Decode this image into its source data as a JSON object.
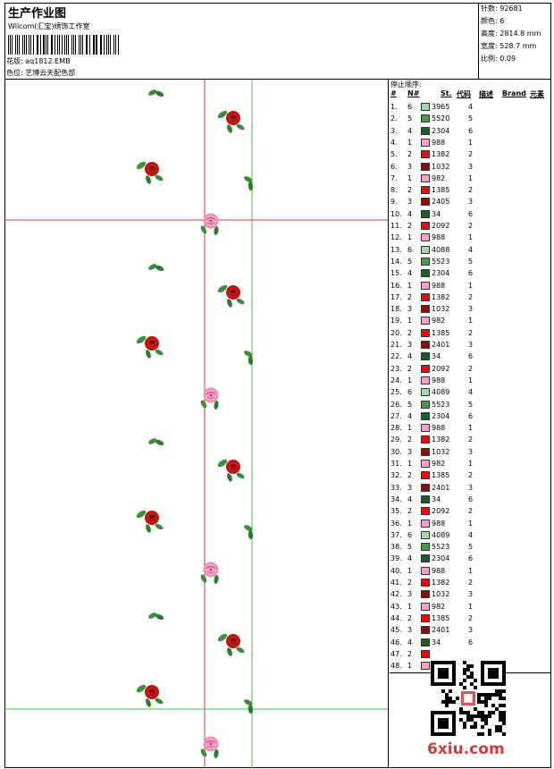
{
  "header": {
    "title": "生产作业图",
    "company": "Wilcom(汇宝)绣饰工作室",
    "file_label": "花版:",
    "file_name": "aq1812.EMB",
    "colorway_label": "色位:",
    "colorway_name": "艺博云天配色部"
  },
  "stats": [
    {
      "label": "针数:",
      "value": "92681"
    },
    {
      "label": "颜色:",
      "value": "6"
    },
    {
      "label": "高度:",
      "value": "2814.8 mm"
    },
    {
      "label": "宽度:",
      "value": "528.7 mm"
    },
    {
      "label": "比例:",
      "value": "0.09"
    }
  ],
  "sequence": {
    "title": "停止顺序:",
    "headers": [
      "#",
      "N#",
      "St.",
      "代码",
      "描述",
      "Brand",
      "元素"
    ],
    "rows": [
      {
        "n": "1.",
        "nn": "6",
        "code": "3965",
        "el": "4",
        "color": "#a8d8a8"
      },
      {
        "n": "2.",
        "nn": "5",
        "code": "5520",
        "el": "5",
        "color": "#4a9a4a"
      },
      {
        "n": "3.",
        "nn": "4",
        "code": "2304",
        "el": "6",
        "color": "#1e5a2a"
      },
      {
        "n": "4.",
        "nn": "1",
        "code": "988",
        "el": "1",
        "color": "#f5a0c8"
      },
      {
        "n": "5.",
        "nn": "2",
        "code": "1382",
        "el": "2",
        "color": "#e01010"
      },
      {
        "n": "6.",
        "nn": "3",
        "code": "1032",
        "el": "3",
        "color": "#8a1010"
      },
      {
        "n": "7.",
        "nn": "1",
        "code": "982",
        "el": "1",
        "color": "#f5a0c8"
      },
      {
        "n": "8.",
        "nn": "2",
        "code": "1385",
        "el": "2",
        "color": "#e01010"
      },
      {
        "n": "9.",
        "nn": "3",
        "code": "2405",
        "el": "3",
        "color": "#8a1010"
      },
      {
        "n": "10.",
        "nn": "4",
        "code": "34",
        "el": "6",
        "color": "#1e5a2a"
      },
      {
        "n": "11.",
        "nn": "2",
        "code": "2092",
        "el": "2",
        "color": "#e01010"
      },
      {
        "n": "12.",
        "nn": "1",
        "code": "988",
        "el": "1",
        "color": "#f5a0c8"
      },
      {
        "n": "13.",
        "nn": "6",
        "code": "4088",
        "el": "4",
        "color": "#a8d8a8"
      },
      {
        "n": "14.",
        "nn": "5",
        "code": "5523",
        "el": "5",
        "color": "#4a9a4a"
      },
      {
        "n": "15.",
        "nn": "4",
        "code": "2304",
        "el": "6",
        "color": "#1e5a2a"
      },
      {
        "n": "16.",
        "nn": "1",
        "code": "988",
        "el": "1",
        "color": "#f5a0c8"
      },
      {
        "n": "17.",
        "nn": "2",
        "code": "1382",
        "el": "2",
        "color": "#e01010"
      },
      {
        "n": "18.",
        "nn": "3",
        "code": "1032",
        "el": "3",
        "color": "#8a1010"
      },
      {
        "n": "19.",
        "nn": "1",
        "code": "982",
        "el": "1",
        "color": "#f5a0c8"
      },
      {
        "n": "20.",
        "nn": "2",
        "code": "1385",
        "el": "2",
        "color": "#e01010"
      },
      {
        "n": "21.",
        "nn": "3",
        "code": "2401",
        "el": "3",
        "color": "#8a1010"
      },
      {
        "n": "22.",
        "nn": "4",
        "code": "34",
        "el": "6",
        "color": "#1e5a2a"
      },
      {
        "n": "23.",
        "nn": "2",
        "code": "2092",
        "el": "2",
        "color": "#e01010"
      },
      {
        "n": "24.",
        "nn": "1",
        "code": "988",
        "el": "1",
        "color": "#f5a0c8"
      },
      {
        "n": "25.",
        "nn": "6",
        "code": "4089",
        "el": "4",
        "color": "#a8d8a8"
      },
      {
        "n": "26.",
        "nn": "5",
        "code": "5523",
        "el": "5",
        "color": "#4a9a4a"
      },
      {
        "n": "27.",
        "nn": "4",
        "code": "2304",
        "el": "6",
        "color": "#1e5a2a"
      },
      {
        "n": "28.",
        "nn": "1",
        "code": "988",
        "el": "1",
        "color": "#f5a0c8"
      },
      {
        "n": "29.",
        "nn": "2",
        "code": "1382",
        "el": "2",
        "color": "#e01010"
      },
      {
        "n": "30.",
        "nn": "3",
        "code": "1032",
        "el": "3",
        "color": "#8a1010"
      },
      {
        "n": "31.",
        "nn": "1",
        "code": "982",
        "el": "1",
        "color": "#f5a0c8"
      },
      {
        "n": "32.",
        "nn": "2",
        "code": "1385",
        "el": "2",
        "color": "#e01010"
      },
      {
        "n": "33.",
        "nn": "3",
        "code": "2401",
        "el": "3",
        "color": "#8a1010"
      },
      {
        "n": "34.",
        "nn": "4",
        "code": "34",
        "el": "6",
        "color": "#1e5a2a"
      },
      {
        "n": "35.",
        "nn": "2",
        "code": "2092",
        "el": "2",
        "color": "#e01010"
      },
      {
        "n": "36.",
        "nn": "1",
        "code": "988",
        "el": "1",
        "color": "#f5a0c8"
      },
      {
        "n": "37.",
        "nn": "6",
        "code": "4089",
        "el": "4",
        "color": "#a8d8a8"
      },
      {
        "n": "38.",
        "nn": "5",
        "code": "5523",
        "el": "5",
        "color": "#4a9a4a"
      },
      {
        "n": "39.",
        "nn": "4",
        "code": "2304",
        "el": "6",
        "color": "#1e5a2a"
      },
      {
        "n": "40.",
        "nn": "1",
        "code": "988",
        "el": "1",
        "color": "#f5a0c8"
      },
      {
        "n": "41.",
        "nn": "2",
        "code": "1382",
        "el": "2",
        "color": "#e01010"
      },
      {
        "n": "42.",
        "nn": "3",
        "code": "1032",
        "el": "3",
        "color": "#8a1010"
      },
      {
        "n": "43.",
        "nn": "1",
        "code": "982",
        "el": "1",
        "color": "#f5a0c8"
      },
      {
        "n": "44.",
        "nn": "2",
        "code": "1385",
        "el": "2",
        "color": "#e01010"
      },
      {
        "n": "45.",
        "nn": "3",
        "code": "2401",
        "el": "3",
        "color": "#8a1010"
      },
      {
        "n": "46.",
        "nn": "4",
        "code": "34",
        "el": "6",
        "color": "#1e5a2a"
      },
      {
        "n": "47.",
        "nn": "2",
        "code": "",
        "el": "",
        "color": "#e01010"
      },
      {
        "n": "48.",
        "nn": "1",
        "code": "",
        "el": "",
        "color": "#f5a0c8"
      }
    ]
  },
  "watermark": {
    "text": "6xiu.com"
  }
}
